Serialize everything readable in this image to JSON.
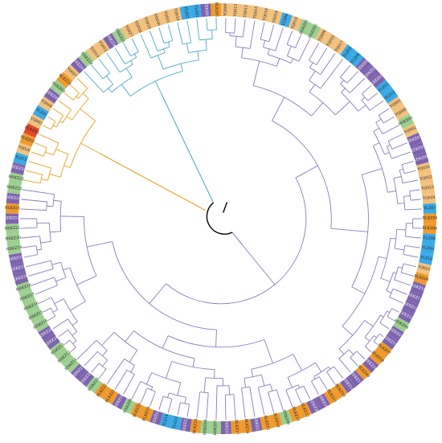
{
  "diagram": {
    "type": "circular-phylogenetic-tree",
    "clade_colors": {
      "orange_clade": "#e8a21e",
      "teal_clade": "#4fa9c6",
      "purple_clade": "#8b7db8",
      "root": "#000000"
    },
    "label_palette": {
      "purple": "#7e64ae",
      "green": "#9ccf90",
      "orange": "#ee9a2e",
      "blue": "#3aa9e6",
      "tan": "#f2c17e",
      "red": "#e2492b"
    },
    "leaves": [
      {
        "label": "YQ030",
        "color": "tan"
      },
      {
        "label": "YQ021",
        "color": "tan"
      },
      {
        "label": "YQ019",
        "color": "tan"
      },
      {
        "label": "YLZ02",
        "color": "blue"
      },
      {
        "label": "YLZ03",
        "color": "blue"
      },
      {
        "label": "KEKZ01",
        "color": "purple"
      },
      {
        "label": "BLKZ01",
        "color": "orange"
      },
      {
        "label": "YQ009",
        "color": "tan"
      },
      {
        "label": "YQ013",
        "color": "tan"
      },
      {
        "label": "YQ011",
        "color": "tan"
      },
      {
        "label": "YQ015",
        "color": "tan"
      },
      {
        "label": "YQ018",
        "color": "tan"
      },
      {
        "label": "YQ014",
        "color": "tan"
      },
      {
        "label": "YLZ04",
        "color": "blue"
      },
      {
        "label": "YQ016",
        "color": "tan"
      },
      {
        "label": "HSKZ01",
        "color": "green"
      },
      {
        "label": "HSKZ02",
        "color": "green"
      },
      {
        "label": "YQ006",
        "color": "tan"
      },
      {
        "label": "YQ005",
        "color": "tan"
      },
      {
        "label": "YQ017",
        "color": "tan"
      },
      {
        "label": "YLZ05",
        "color": "blue"
      },
      {
        "label": "YLZ06",
        "color": "blue"
      },
      {
        "label": "KEKZ08",
        "color": "purple"
      },
      {
        "label": "KEKZ02",
        "color": "purple"
      },
      {
        "label": "KEKZ03",
        "color": "purple"
      },
      {
        "label": "YLZ11",
        "color": "blue"
      },
      {
        "label": "YLZ12",
        "color": "blue"
      },
      {
        "label": "YQ001",
        "color": "tan"
      },
      {
        "label": "YQ008",
        "color": "tan"
      },
      {
        "label": "HSKZ05",
        "color": "green"
      },
      {
        "label": "YQ002",
        "color": "tan"
      },
      {
        "label": "KEKZ07",
        "color": "purple"
      },
      {
        "label": "KEKZ05",
        "color": "purple"
      },
      {
        "label": "KEKZ06",
        "color": "purple"
      },
      {
        "label": "YQ020",
        "color": "tan"
      },
      {
        "label": "YQ022",
        "color": "tan"
      },
      {
        "label": "YQ023",
        "color": "tan"
      },
      {
        "label": "YQ024",
        "color": "tan"
      },
      {
        "label": "YLZ07",
        "color": "blue"
      },
      {
        "label": "BLKZ05",
        "color": "orange"
      },
      {
        "label": "BLKZ06",
        "color": "orange"
      },
      {
        "label": "YLZ08",
        "color": "blue"
      },
      {
        "label": "YLZ09",
        "color": "blue"
      },
      {
        "label": "YLZ10",
        "color": "blue"
      },
      {
        "label": "YQ025",
        "color": "tan"
      },
      {
        "label": "BLKZ04",
        "color": "orange"
      },
      {
        "label": "KEKZ10",
        "color": "purple"
      },
      {
        "label": "KEKZ11",
        "color": "purple"
      },
      {
        "label": "KEKZ12",
        "color": "purple"
      },
      {
        "label": "KEKZ13",
        "color": "purple"
      },
      {
        "label": "HSKZ04",
        "color": "green"
      },
      {
        "label": "KEKZ14",
        "color": "purple"
      },
      {
        "label": "KEKZ15",
        "color": "purple"
      },
      {
        "label": "BLKZ07",
        "color": "orange"
      },
      {
        "label": "BLKZ08",
        "color": "orange"
      },
      {
        "label": "KEKZ16",
        "color": "purple"
      },
      {
        "label": "BLKZ09",
        "color": "orange"
      },
      {
        "label": "KEKZ17",
        "color": "purple"
      },
      {
        "label": "KEKZ18",
        "color": "purple"
      },
      {
        "label": "BLKZ10",
        "color": "orange"
      },
      {
        "label": "BLKZ11",
        "color": "orange"
      },
      {
        "label": "KEKZ19",
        "color": "purple"
      },
      {
        "label": "KEKZ20",
        "color": "purple"
      },
      {
        "label": "BLKZ12",
        "color": "orange"
      },
      {
        "label": "BLKZ13",
        "color": "orange"
      },
      {
        "label": "HSKZ06",
        "color": "green"
      },
      {
        "label": "BLKZ14",
        "color": "orange"
      },
      {
        "label": "BLKZ15",
        "color": "orange"
      },
      {
        "label": "KEKZ21",
        "color": "purple"
      },
      {
        "label": "BLKZ16",
        "color": "orange"
      },
      {
        "label": "BLKZ17",
        "color": "orange"
      },
      {
        "label": "KEKZ22",
        "color": "purple"
      },
      {
        "label": "HSKZ07",
        "color": "green"
      },
      {
        "label": "HSKZ08",
        "color": "green"
      },
      {
        "label": "BLKZ18",
        "color": "orange"
      },
      {
        "label": "KEKZ23",
        "color": "purple"
      },
      {
        "label": "YLZ13",
        "color": "blue"
      },
      {
        "label": "YLZ14",
        "color": "blue"
      },
      {
        "label": "KEKZ24",
        "color": "purple"
      },
      {
        "label": "BLKZ19",
        "color": "orange"
      },
      {
        "label": "BLKZ20",
        "color": "orange"
      },
      {
        "label": "HSKZ09",
        "color": "green"
      },
      {
        "label": "KEKZ25",
        "color": "purple"
      },
      {
        "label": "BLKZ21",
        "color": "orange"
      },
      {
        "label": "BLKZ22",
        "color": "orange"
      },
      {
        "label": "HSKZ10",
        "color": "green"
      },
      {
        "label": "KEKZ26",
        "color": "purple"
      },
      {
        "label": "KEKZ27",
        "color": "purple"
      },
      {
        "label": "HSKZ11",
        "color": "green"
      },
      {
        "label": "HSKZ12",
        "color": "green"
      },
      {
        "label": "HSKZ13",
        "color": "green"
      },
      {
        "label": "KEKZ28",
        "color": "purple"
      },
      {
        "label": "KEKZ29",
        "color": "purple"
      },
      {
        "label": "HSKZ14",
        "color": "green"
      },
      {
        "label": "HSKZ15",
        "color": "green"
      },
      {
        "label": "HSKZ16",
        "color": "green"
      },
      {
        "label": "HSKZ17",
        "color": "green"
      },
      {
        "label": "HSKZ18",
        "color": "green"
      },
      {
        "label": "KEKZ30",
        "color": "purple"
      },
      {
        "label": "KEKZ31",
        "color": "purple"
      },
      {
        "label": "KEKZ32",
        "color": "purple"
      },
      {
        "label": "HSKZ19",
        "color": "green"
      },
      {
        "label": "HSKZ20",
        "color": "green"
      },
      {
        "label": "HSKZ21",
        "color": "green"
      },
      {
        "label": "KEKZ33",
        "color": "purple"
      },
      {
        "label": "BLKZ23",
        "color": "orange"
      },
      {
        "label": "KEKZ34",
        "color": "purple"
      },
      {
        "label": "HSKZ22",
        "color": "green"
      },
      {
        "label": "HSKZ23",
        "color": "green"
      },
      {
        "label": "KEKZ35",
        "color": "purple"
      },
      {
        "label": "YLZ15",
        "color": "blue"
      },
      {
        "label": "YQ026",
        "color": "tan"
      },
      {
        "label": "BLKZ02",
        "color": "orange"
      },
      {
        "label": "BLKZ03",
        "color": "red"
      },
      {
        "label": "YQ003",
        "color": "tan"
      },
      {
        "label": "YLZ01",
        "color": "blue"
      },
      {
        "label": "YQ004",
        "color": "tan"
      },
      {
        "label": "KEKZ09",
        "color": "purple"
      },
      {
        "label": "HSKZ03",
        "color": "green"
      },
      {
        "label": "BLKZ24",
        "color": "orange"
      },
      {
        "label": "YQ007",
        "color": "tan"
      },
      {
        "label": "KEKZ04",
        "color": "purple"
      },
      {
        "label": "HSKZ24",
        "color": "green"
      },
      {
        "label": "YQ010",
        "color": "tan"
      },
      {
        "label": "YQ012",
        "color": "tan"
      },
      {
        "label": "KEKZ36",
        "color": "purple"
      },
      {
        "label": "HSKZ25",
        "color": "green"
      },
      {
        "label": "YQ027",
        "color": "tan"
      },
      {
        "label": "YQ028",
        "color": "tan"
      },
      {
        "label": "YQ029",
        "color": "tan"
      }
    ]
  }
}
